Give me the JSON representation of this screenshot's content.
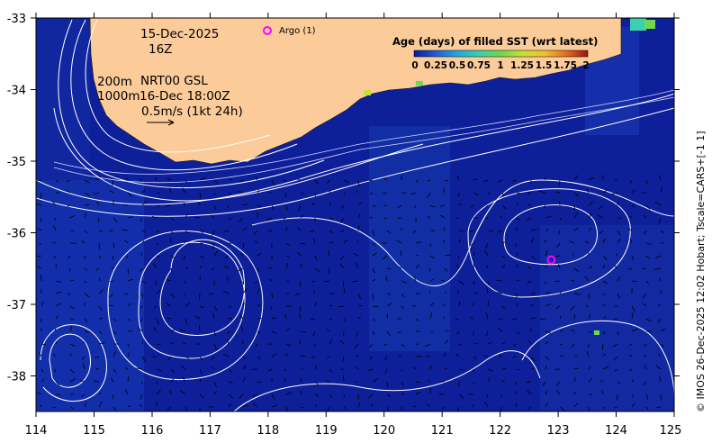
{
  "title_block": {
    "date": "15-Dec-2025",
    "hour": "16Z",
    "depth_200": "200m",
    "depth_1000": "1000m",
    "product": "NRT00 GSL",
    "velocity_time": "16-Dec 18:00Z",
    "scale_vector": "0.5m/s (1kt 24h)"
  },
  "legend": {
    "title": "Age (days) of filled SST (wrt latest)",
    "ticks": [
      "0",
      "0.25",
      "0.5",
      "0.75",
      "1",
      "1.25",
      "1.5",
      "1.75",
      "2"
    ],
    "colors": [
      "#0b1a96",
      "#1f5fd6",
      "#23a7e0",
      "#3ad0b0",
      "#6fd84e",
      "#c6e03a",
      "#f0c030",
      "#e07020",
      "#a01010"
    ]
  },
  "argo": {
    "label": "Argo (1)",
    "color": "#ff00ff",
    "floats": [
      {
        "lon": 122.88,
        "lat": -36.38
      }
    ]
  },
  "axes": {
    "x_ticks": [
      "114",
      "115",
      "116",
      "117",
      "118",
      "119",
      "120",
      "121",
      "122",
      "123",
      "124",
      "125"
    ],
    "y_ticks": [
      "-33",
      "-34",
      "-35",
      "-36",
      "-37",
      "-38"
    ],
    "lon_range": [
      114,
      125
    ],
    "lat_range": [
      -38.5,
      -33
    ]
  },
  "credit": "© IMOS 26-Dec-2025 12:02 Hobart; Tscale=CARS+[-1 1]",
  "colors": {
    "ocean": "#0e1f9a",
    "ocean_alt": "#1530a8",
    "land": "#fbcb99",
    "contour": "#ffffff"
  }
}
